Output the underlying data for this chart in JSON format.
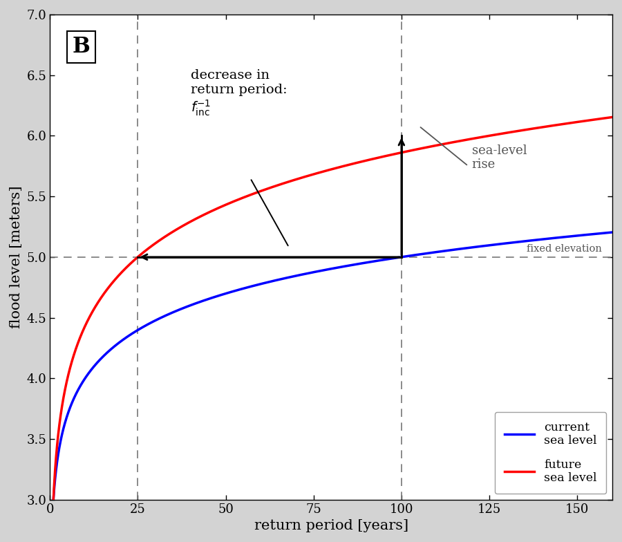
{
  "xlabel": "return period [years]",
  "ylabel": "flood level [meters]",
  "xlim": [
    0,
    160
  ],
  "ylim": [
    3,
    7
  ],
  "xticks": [
    0,
    25,
    50,
    75,
    100,
    125,
    150
  ],
  "yticks": [
    3,
    3.5,
    4,
    4.5,
    5,
    5.5,
    6,
    6.5,
    7
  ],
  "blue_color": "#0000ff",
  "red_color": "#ff0000",
  "fixed_elevation": 5.0,
  "vline1_x": 25,
  "vline2_x": 100,
  "label_box_text": "B",
  "annotation_text": "decrease in\nreturn period:\n$f_{\\mathrm{inc}}^{-1}$",
  "sea_level_rise_text": "sea-level\nrise",
  "fixed_elevation_text": "fixed elevation",
  "legend_blue_1": "current",
  "legend_blue_2": "sea level",
  "legend_red_1": "future",
  "legend_red_2": "sea level",
  "blue_base": 3.0,
  "red_base": 3.0,
  "line_width": 2.5,
  "background_color": "#d3d3d3",
  "plot_bg_color": "#ffffff",
  "dashed_color": "#777777",
  "arrow_color": "#000000",
  "text_color": "#000000",
  "annot_line_color": "#555555"
}
